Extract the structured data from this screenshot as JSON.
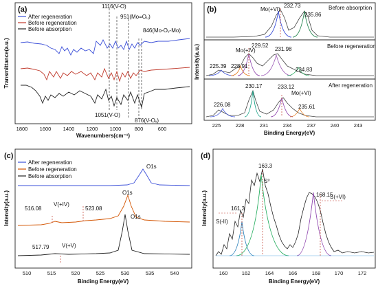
{
  "chart_data": [
    {
      "panel": "(a)",
      "type": "line",
      "xlabel": "Wavenumbers(cm⁻¹)",
      "ylabel": "Transmittance(a.u.)",
      "xlim": [
        1950,
        450
      ],
      "xticks": [
        "1800",
        "1600",
        "1400",
        "1200",
        "1000",
        "800",
        "600"
      ],
      "legend_position": "top-left",
      "series": [
        {
          "name": "After regeneration",
          "color": "#3b4fd8"
        },
        {
          "name": "Before regeneration",
          "color": "#c0392b"
        },
        {
          "name": "Before absorption",
          "color": "#222222"
        }
      ],
      "annotations": [
        {
          "text": "1116(V-O)",
          "x": 1116
        },
        {
          "text": "951(Mo=Oᵤ)",
          "x": 951
        },
        {
          "text": "846(Mo-Oᵥ-Mo)",
          "x": 846
        },
        {
          "text": "1051(V-O)",
          "x": 1051
        },
        {
          "text": "876(V-Oᵥ)",
          "x": 876
        }
      ]
    },
    {
      "panel": "(b)",
      "type": "line",
      "xlabel": "Binding Energy(eV)",
      "ylabel": "Intensity(a.u.)",
      "xlim": [
        223.5,
        245
      ],
      "xticks": [
        "225",
        "228",
        "231",
        "234",
        "237",
        "240",
        "243"
      ],
      "subpanels": [
        {
          "title": "Before absorption",
          "labels": [
            "Mo(+VI)",
            "232.73",
            "235.86"
          ]
        },
        {
          "title": "Before regeneration",
          "labels": [
            "Mo(+IV)",
            "229.52",
            "231.98",
            "225.39",
            "228.91",
            "234.83"
          ]
        },
        {
          "title": "After regeneration",
          "labels": [
            "230.17",
            "233.12",
            "Mo(+VI)",
            "226.08",
            "235.61"
          ]
        }
      ]
    },
    {
      "panel": "(c)",
      "type": "line",
      "xlabel": "Binding Energy(eV)",
      "ylabel": "Intensity(a.u.)",
      "xlim": [
        509,
        545
      ],
      "xticks": [
        "510",
        "515",
        "520",
        "525",
        "530",
        "535",
        "540"
      ],
      "legend_position": "top-left",
      "series": [
        {
          "name": "After regeneration",
          "color": "#3b4fd8"
        },
        {
          "name": "Before regeneration",
          "color": "#d35400"
        },
        {
          "name": "Before absorption",
          "color": "#222222"
        }
      ],
      "annotations": [
        "O1s",
        "O1s",
        "O1s",
        "516.08",
        "V(+IV)",
        "523.08",
        "517.79",
        "V(+V)"
      ]
    },
    {
      "panel": "(d)",
      "type": "line",
      "xlabel": "Binding Energy(eV)",
      "ylabel": "Intensity(a.u.)",
      "xlim": [
        159,
        173
      ],
      "xticks": [
        "160",
        "162",
        "164",
        "166",
        "168",
        "170",
        "172"
      ],
      "annotations": [
        "163.3",
        "S⁰",
        "161.3",
        "S(-II)",
        "168.15",
        "S(+VI)"
      ]
    }
  ]
}
